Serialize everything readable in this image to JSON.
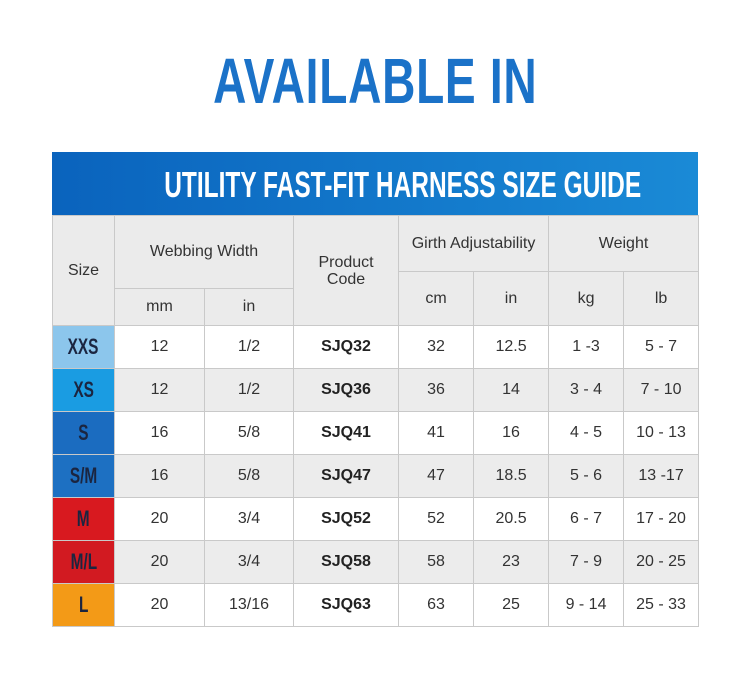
{
  "headline": "AVAILABLE IN",
  "title": "UTILITY FAST-FIT HARNESS SIZE GUIDE",
  "headers": {
    "size": "Size",
    "webbing_width": "Webbing Width",
    "product_code_line1": "Product",
    "product_code_line2": "Code",
    "girth": "Girth Adjustability",
    "weight": "Weight",
    "mm": "mm",
    "in": "in",
    "cm": "cm",
    "girth_in": "in",
    "kg": "kg",
    "lb": "lb"
  },
  "rows": [
    {
      "size": "XXS",
      "color": "#8cc6ec",
      "mm": "12",
      "in": "1/2",
      "code": "SJQ32",
      "cm": "32",
      "girth_in": "12.5",
      "kg": "1 -3",
      "lb": "5 - 7"
    },
    {
      "size": "XS",
      "color": "#1a9ce2",
      "mm": "12",
      "in": "1/2",
      "code": "SJQ36",
      "cm": "36",
      "girth_in": "14",
      "kg": "3 - 4",
      "lb": "7 - 10"
    },
    {
      "size": "S",
      "color": "#1b6cc0",
      "mm": "16",
      "in": "5/8",
      "code": "SJQ41",
      "cm": "41",
      "girth_in": "16",
      "kg": "4 - 5",
      "lb": "10 - 13"
    },
    {
      "size": "S/M",
      "color": "#1d70c2",
      "mm": "16",
      "in": "5/8",
      "code": "SJQ47",
      "cm": "47",
      "girth_in": "18.5",
      "kg": "5 - 6",
      "lb": "13 -17"
    },
    {
      "size": "M",
      "color": "#d8191f",
      "mm": "20",
      "in": "3/4",
      "code": "SJQ52",
      "cm": "52",
      "girth_in": "20.5",
      "kg": "6 - 7",
      "lb": "17 - 20"
    },
    {
      "size": "M/L",
      "color": "#d21a21",
      "mm": "20",
      "in": "3/4",
      "code": "SJQ58",
      "cm": "58",
      "girth_in": "23",
      "kg": "7 - 9",
      "lb": "20 - 25"
    },
    {
      "size": "L",
      "color": "#f39a17",
      "mm": "20",
      "in": "13/16",
      "code": "SJQ63",
      "cm": "63",
      "girth_in": "25",
      "kg": "9 - 14",
      "lb": "25 - 33"
    }
  ]
}
